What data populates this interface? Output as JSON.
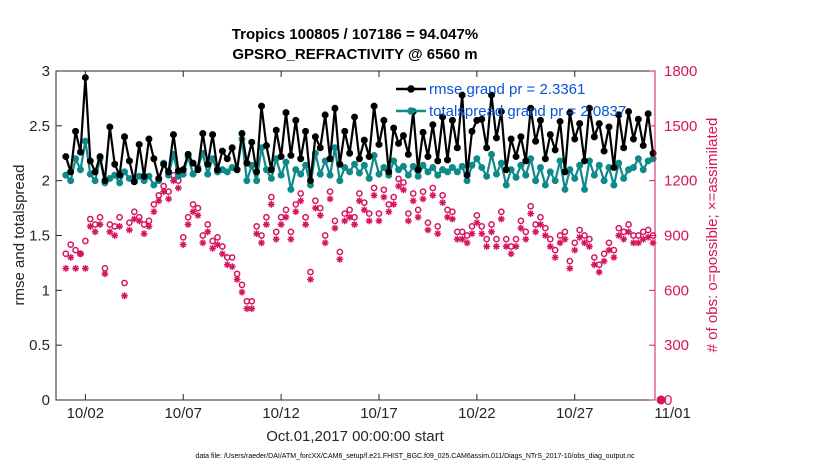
{
  "chart_data": {
    "type": "line",
    "title": "Tropics 100805 / 107186 = 94.047%",
    "subtitle": "GPSRO_REFRACTIVITY @ 6560 m",
    "xlabel": "Oct.01,2017 00:00:00 start",
    "ylabel": "rmse and totalspread",
    "y2label": "# of obs: o=possible; ×=assimilated",
    "footer": "data file: /Users/raeder/DAI/ATM_forcXX/CAM6_setup/f.e21.FHIST_BGC.f09_025.CAM6assim.011/Diags_NTrS_2017-10/obs_diag_output.nc",
    "xlim": [
      0.5,
      31.1
    ],
    "ylim": [
      0,
      3
    ],
    "y2lim": [
      0,
      1800
    ],
    "xtick_values": [
      2,
      7,
      12,
      17,
      22,
      27,
      32
    ],
    "xtick_labels": [
      "10/02",
      "10/07",
      "10/12",
      "10/17",
      "10/22",
      "10/27",
      "11/01"
    ],
    "ytick_labels": [
      "0",
      "0.5",
      "1",
      "1.5",
      "2",
      "2.5",
      "3"
    ],
    "y2tick_labels": [
      "0",
      "300",
      "600",
      "900",
      "1200",
      "1500",
      "1800"
    ],
    "legend_location": "top-right",
    "series": [
      {
        "name": "rmse grand pr = 2.3361",
        "color": "#000000",
        "axis": "left",
        "x": [
          1.0,
          1.25,
          1.5,
          1.75,
          2.0,
          2.25,
          2.5,
          2.75,
          3.0,
          3.25,
          3.5,
          3.75,
          4.0,
          4.25,
          4.5,
          4.75,
          5.0,
          5.25,
          5.5,
          5.75,
          6.0,
          6.25,
          6.5,
          6.75,
          7.0,
          7.25,
          7.5,
          7.75,
          8.0,
          8.25,
          8.5,
          8.75,
          9.0,
          9.25,
          9.5,
          9.75,
          10.0,
          10.25,
          10.5,
          10.75,
          11.0,
          11.25,
          11.5,
          11.75,
          12.0,
          12.25,
          12.5,
          12.75,
          13.0,
          13.25,
          13.5,
          13.75,
          14.0,
          14.25,
          14.5,
          14.75,
          15.0,
          15.25,
          15.5,
          15.75,
          16.0,
          16.25,
          16.5,
          16.75,
          17.0,
          17.25,
          17.5,
          17.75,
          18.0,
          18.25,
          18.5,
          18.75,
          19.0,
          19.25,
          19.5,
          19.75,
          20.0,
          20.25,
          20.5,
          20.75,
          21.0,
          21.25,
          21.5,
          21.75,
          22.0,
          22.25,
          22.5,
          22.75,
          23.0,
          23.25,
          23.5,
          23.75,
          24.0,
          24.25,
          24.5,
          24.75,
          25.0,
          25.25,
          25.5,
          25.75,
          26.0,
          26.25,
          26.5,
          26.75,
          27.0,
          27.25,
          27.5,
          27.75,
          28.0,
          28.25,
          28.5,
          28.75,
          29.0,
          29.25,
          29.5,
          29.75,
          30.0,
          30.25,
          30.5,
          30.75,
          31.0
        ],
        "values": [
          2.22,
          2.08,
          2.45,
          2.26,
          2.94,
          2.18,
          2.08,
          2.22,
          2.0,
          2.49,
          2.15,
          2.05,
          2.4,
          2.18,
          1.99,
          2.33,
          2.04,
          2.38,
          2.2,
          2.02,
          2.15,
          2.08,
          2.42,
          2.09,
          2.1,
          2.24,
          2.16,
          2.1,
          2.43,
          2.15,
          2.42,
          2.1,
          2.27,
          2.2,
          2.3,
          2.1,
          2.43,
          2.16,
          2.35,
          2.08,
          2.68,
          2.32,
          2.1,
          2.46,
          2.22,
          2.62,
          2.23,
          2.55,
          2.2,
          2.45,
          2.0,
          2.4,
          2.3,
          2.6,
          2.2,
          2.66,
          2.15,
          2.45,
          2.25,
          2.58,
          2.2,
          2.37,
          2.22,
          2.68,
          2.33,
          2.55,
          2.08,
          2.48,
          2.34,
          2.41,
          2.24,
          2.63,
          2.1,
          2.44,
          2.22,
          2.51,
          2.18,
          2.58,
          2.19,
          2.55,
          2.3,
          2.78,
          2.05,
          2.45,
          2.55,
          2.56,
          2.3,
          2.78,
          2.39,
          2.63,
          2.1,
          2.38,
          2.22,
          2.4,
          2.18,
          2.66,
          2.36,
          2.55,
          2.2,
          2.42,
          2.28,
          2.54,
          2.08,
          2.62,
          2.38,
          2.52,
          2.18,
          2.66,
          2.4,
          2.52,
          2.27,
          2.49,
          2.12,
          2.6,
          2.3,
          2.63,
          2.38,
          2.56,
          2.32,
          2.61,
          2.25
        ]
      },
      {
        "name": "totalspread grand pr = 2.0837",
        "color": "#0f8a8a",
        "axis": "left",
        "x": [
          1.0,
          1.25,
          1.5,
          1.75,
          2.0,
          2.25,
          2.5,
          2.75,
          3.0,
          3.25,
          3.5,
          3.75,
          4.0,
          4.25,
          4.5,
          4.75,
          5.0,
          5.25,
          5.5,
          5.75,
          6.0,
          6.25,
          6.5,
          6.75,
          7.0,
          7.25,
          7.5,
          7.75,
          8.0,
          8.25,
          8.5,
          8.75,
          9.0,
          9.25,
          9.5,
          9.75,
          10.0,
          10.25,
          10.5,
          10.75,
          11.0,
          11.25,
          11.5,
          11.75,
          12.0,
          12.25,
          12.5,
          12.75,
          13.0,
          13.25,
          13.5,
          13.75,
          14.0,
          14.25,
          14.5,
          14.75,
          15.0,
          15.25,
          15.5,
          15.75,
          16.0,
          16.25,
          16.5,
          16.75,
          17.0,
          17.25,
          17.5,
          17.75,
          18.0,
          18.25,
          18.5,
          18.75,
          19.0,
          19.25,
          19.5,
          19.75,
          20.0,
          20.25,
          20.5,
          20.75,
          21.0,
          21.25,
          21.5,
          21.75,
          22.0,
          22.25,
          22.5,
          22.75,
          23.0,
          23.25,
          23.5,
          23.75,
          24.0,
          24.25,
          24.5,
          24.75,
          25.0,
          25.25,
          25.5,
          25.75,
          26.0,
          26.25,
          26.5,
          26.75,
          27.0,
          27.25,
          27.5,
          27.75,
          28.0,
          28.25,
          28.5,
          28.75,
          29.0,
          29.25,
          29.5,
          29.75,
          30.0,
          30.25,
          30.5,
          30.75,
          31.0
        ],
        "values": [
          2.05,
          2.0,
          2.2,
          2.1,
          2.36,
          2.06,
          2.0,
          2.2,
          1.98,
          2.02,
          2.05,
          1.98,
          2.08,
          2.02,
          2.01,
          2.04,
          2.0,
          2.04,
          1.96,
          2.0,
          2.16,
          2.05,
          2.24,
          2.04,
          2.06,
          2.22,
          2.06,
          2.12,
          2.25,
          2.06,
          2.2,
          2.08,
          2.1,
          2.08,
          2.12,
          2.1,
          2.38,
          2.0,
          2.14,
          2.0,
          2.3,
          2.1,
          2.02,
          2.2,
          2.05,
          2.17,
          1.92,
          2.1,
          2.06,
          2.14,
          1.96,
          2.25,
          2.06,
          2.18,
          2.05,
          2.3,
          2.0,
          2.12,
          2.08,
          2.15,
          2.07,
          2.14,
          2.02,
          2.23,
          2.06,
          2.12,
          2.05,
          2.18,
          2.1,
          2.13,
          2.05,
          2.13,
          2.04,
          2.14,
          2.08,
          2.12,
          2.05,
          2.1,
          2.08,
          2.12,
          2.08,
          2.13,
          2.0,
          2.14,
          2.2,
          2.12,
          2.04,
          2.24,
          2.06,
          2.16,
          1.96,
          2.1,
          2.03,
          2.14,
          2.05,
          2.2,
          2.0,
          2.12,
          1.96,
          2.08,
          2.0,
          2.18,
          1.92,
          2.1,
          2.02,
          2.14,
          1.92,
          2.18,
          2.05,
          2.14,
          2.0,
          2.12,
          1.96,
          2.16,
          2.02,
          2.1,
          2.12,
          2.2,
          2.1,
          2.18,
          2.2
        ]
      },
      {
        "name": "obs possible",
        "color": "#d6145f",
        "axis": "right",
        "marker": "circle",
        "x": [
          1.0,
          1.25,
          1.5,
          1.75,
          2.0,
          2.25,
          2.5,
          2.75,
          3.0,
          3.25,
          3.5,
          3.75,
          4.0,
          4.25,
          4.5,
          4.75,
          5.0,
          5.25,
          5.5,
          5.75,
          6.0,
          6.25,
          6.5,
          6.75,
          7.0,
          7.25,
          7.5,
          7.75,
          8.0,
          8.25,
          8.5,
          8.75,
          9.0,
          9.25,
          9.5,
          9.75,
          10.0,
          10.25,
          10.5,
          10.75,
          11.0,
          11.25,
          11.5,
          11.75,
          12.0,
          12.25,
          12.5,
          12.75,
          13.0,
          13.25,
          13.5,
          13.75,
          14.0,
          14.25,
          14.5,
          14.75,
          15.0,
          15.25,
          15.5,
          15.75,
          16.0,
          16.25,
          16.5,
          16.75,
          17.0,
          17.25,
          17.5,
          17.75,
          18.0,
          18.25,
          18.5,
          18.75,
          19.0,
          19.25,
          19.5,
          19.75,
          20.0,
          20.25,
          20.5,
          20.75,
          21.0,
          21.25,
          21.5,
          21.75,
          22.0,
          22.25,
          22.5,
          22.75,
          23.0,
          23.25,
          23.5,
          23.75,
          24.0,
          24.25,
          24.5,
          24.75,
          25.0,
          25.25,
          25.5,
          25.75,
          26.0,
          26.25,
          26.5,
          26.75,
          27.0,
          27.25,
          27.5,
          27.75,
          28.0,
          28.25,
          28.5,
          28.75,
          29.0,
          29.25,
          29.5,
          29.75,
          30.0,
          30.25,
          30.5,
          30.75,
          31.0
        ],
        "values": [
          800,
          850,
          820,
          800,
          870,
          990,
          960,
          1000,
          720,
          960,
          950,
          1000,
          640,
          970,
          1030,
          1000,
          960,
          980,
          1070,
          1120,
          1170,
          1140,
          1230,
          1200,
          890,
          1000,
          1070,
          1050,
          900,
          960,
          870,
          890,
          840,
          780,
          780,
          690,
          630,
          540,
          540,
          950,
          900,
          1000,
          1110,
          920,
          1000,
          1040,
          920,
          1070,
          1130,
          1000,
          700,
          1090,
          1050,
          900,
          1140,
          980,
          810,
          1020,
          1040,
          1000,
          1130,
          1080,
          1020,
          1160,
          1020,
          1150,
          1070,
          1110,
          1210,
          1190,
          1020,
          1130,
          1040,
          1140,
          970,
          1160,
          950,
          1120,
          1040,
          1030,
          920,
          920,
          900,
          950,
          1010,
          950,
          880,
          960,
          880,
          1030,
          880,
          840,
          880,
          980,
          920,
          1060,
          960,
          1000,
          940,
          880,
          820,
          900,
          920,
          760,
          860,
          930,
          900,
          880,
          780,
          740,
          800,
          860,
          820,
          940,
          920,
          960,
          900,
          900,
          920,
          930,
          900
        ]
      },
      {
        "name": "obs assimilated",
        "color": "#d6145f",
        "axis": "right",
        "marker": "asterisk",
        "x": [
          1.0,
          1.25,
          1.5,
          1.75,
          2.0,
          2.25,
          2.5,
          2.75,
          3.0,
          3.25,
          3.5,
          3.75,
          4.0,
          4.25,
          4.5,
          4.75,
          5.0,
          5.25,
          5.5,
          5.75,
          6.0,
          6.25,
          6.5,
          6.75,
          7.0,
          7.25,
          7.5,
          7.75,
          8.0,
          8.25,
          8.5,
          8.75,
          9.0,
          9.25,
          9.5,
          9.75,
          10.0,
          10.25,
          10.5,
          10.75,
          11.0,
          11.25,
          11.5,
          11.75,
          12.0,
          12.25,
          12.5,
          12.75,
          13.0,
          13.25,
          13.5,
          13.75,
          14.0,
          14.25,
          14.5,
          14.75,
          15.0,
          15.25,
          15.5,
          15.75,
          16.0,
          16.25,
          16.5,
          16.75,
          17.0,
          17.25,
          17.5,
          17.75,
          18.0,
          18.25,
          18.5,
          18.75,
          19.0,
          19.25,
          19.5,
          19.75,
          20.0,
          20.25,
          20.5,
          20.75,
          21.0,
          21.25,
          21.5,
          21.75,
          22.0,
          22.25,
          22.5,
          22.75,
          23.0,
          23.25,
          23.5,
          23.75,
          24.0,
          24.25,
          24.5,
          24.75,
          25.0,
          25.25,
          25.5,
          25.75,
          26.0,
          26.25,
          26.5,
          26.75,
          27.0,
          27.25,
          27.5,
          27.75,
          28.0,
          28.25,
          28.5,
          28.75,
          29.0,
          29.25,
          29.5,
          29.75,
          30.0,
          30.25,
          30.5,
          30.75,
          31.0,
          31.0
        ],
        "values": [
          720,
          780,
          720,
          800,
          720,
          950,
          920,
          960,
          690,
          920,
          900,
          950,
          570,
          930,
          990,
          980,
          910,
          950,
          1030,
          1090,
          1140,
          1100,
          1200,
          1160,
          850,
          960,
          1030,
          1010,
          860,
          920,
          830,
          850,
          800,
          740,
          730,
          660,
          590,
          500,
          500,
          910,
          860,
          960,
          1070,
          880,
          960,
          1000,
          880,
          1030,
          1090,
          960,
          660,
          1050,
          1010,
          860,
          1100,
          940,
          770,
          980,
          1000,
          960,
          1090,
          1040,
          980,
          1120,
          980,
          1110,
          1030,
          1070,
          1170,
          1150,
          980,
          1090,
          1000,
          1100,
          930,
          1120,
          910,
          1080,
          1000,
          990,
          880,
          880,
          860,
          910,
          970,
          910,
          840,
          920,
          840,
          990,
          840,
          800,
          840,
          940,
          880,
          1020,
          920,
          960,
          900,
          840,
          780,
          860,
          880,
          720,
          820,
          890,
          860,
          840,
          740,
          700,
          760,
          820,
          780,
          900,
          880,
          920,
          860,
          860,
          880,
          890,
          860,
          0
        ]
      }
    ]
  }
}
